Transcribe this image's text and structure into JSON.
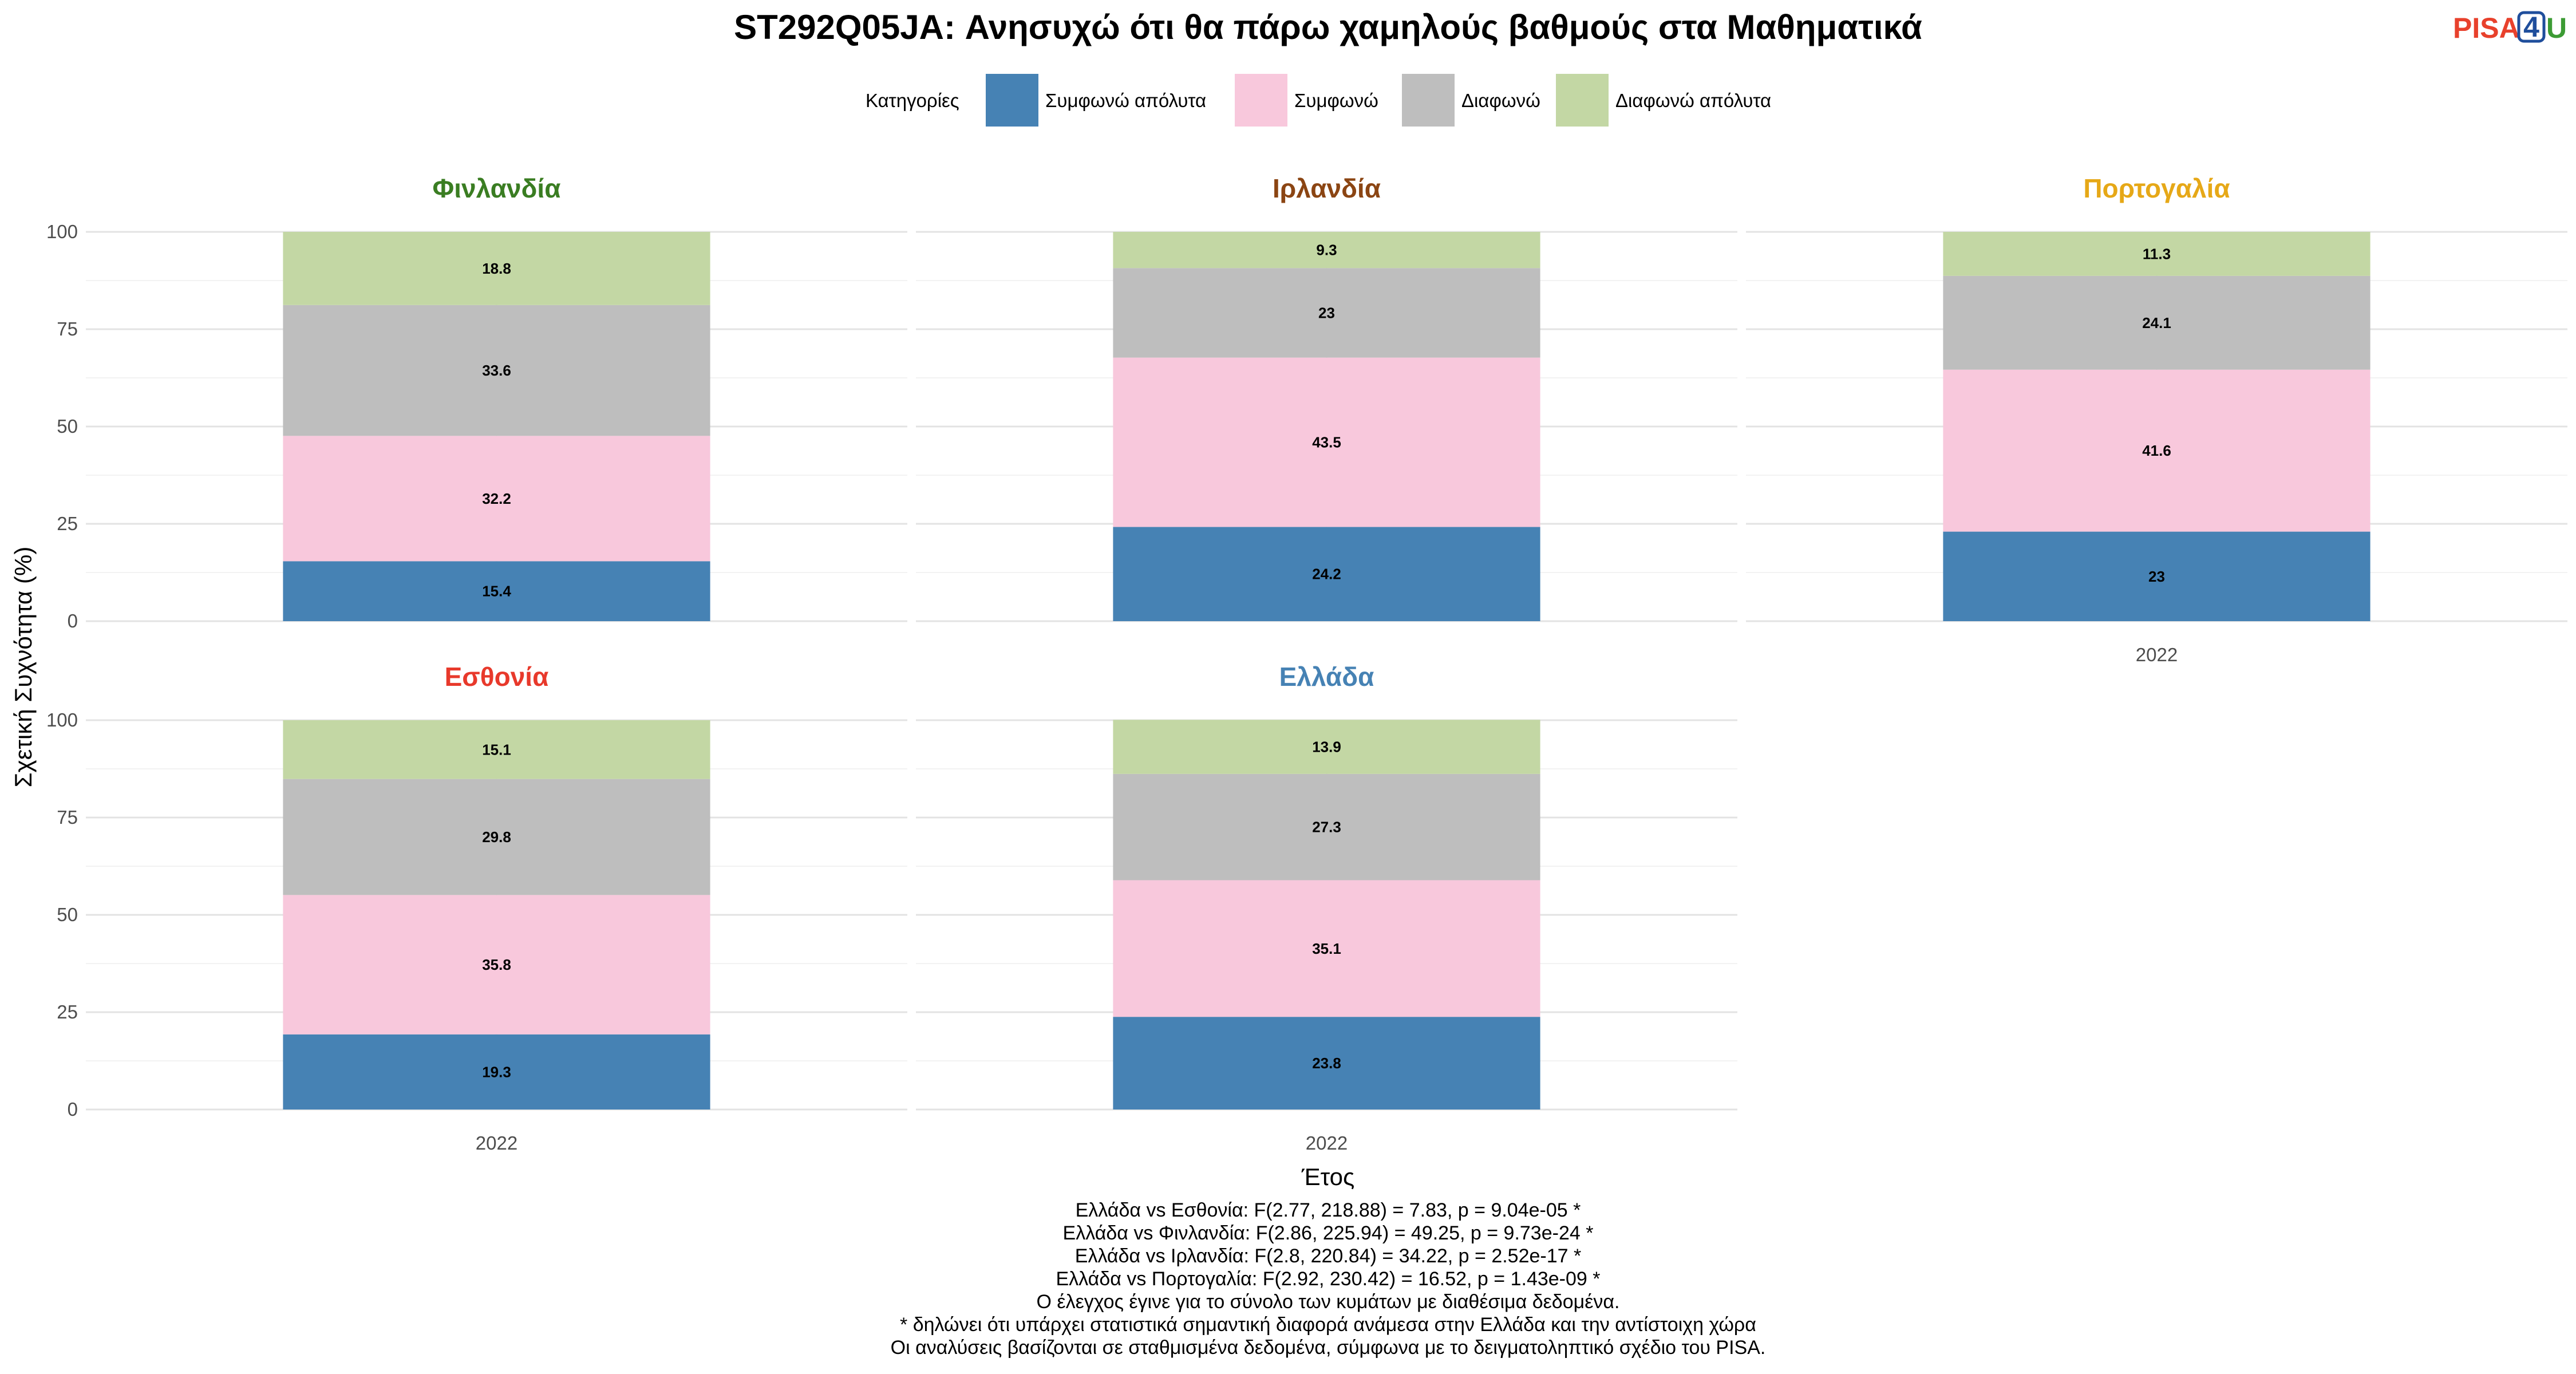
{
  "logo": {
    "text_a": "PISA",
    "text_b": "4",
    "text_c": "U",
    "color_a": "#e8412c",
    "color_b": "#1f4e9c",
    "color_c": "#3c9b34"
  },
  "chart_data": {
    "type": "bar",
    "stacked": true,
    "title": "ST292Q05JA: Ανησυχώ ότι θα πάρω χαμηλούς βαθμούς στα Μαθηματικά",
    "xlabel": "Έτος",
    "ylabel": "Σχετική Συχνότητα (%)",
    "ylim": [
      0,
      100
    ],
    "yticks": [
      0,
      25,
      50,
      75,
      100
    ],
    "grid": true,
    "legend": {
      "title": "Κατηγορίες",
      "placement": "top",
      "items": [
        {
          "label": "Συμφωνώ απόλυτα",
          "color": "#4682b4"
        },
        {
          "label": "Συμφωνώ",
          "color": "#f8c8dc"
        },
        {
          "label": "Διαφωνώ",
          "color": "#bebebe"
        },
        {
          "label": "Διαφωνώ απόλυτα",
          "color": "#c3d7a4"
        }
      ]
    },
    "panels": [
      {
        "name": "Φινλανδία",
        "color": "#3a7d22",
        "category": "2022",
        "show_x_tick": false,
        "values": [
          15.4,
          32.2,
          33.6,
          18.8
        ],
        "labels": [
          "15.4",
          "32.2",
          "33.6",
          "18.8"
        ]
      },
      {
        "name": "Ιρλανδία",
        "color": "#8b4513",
        "category": "2022",
        "show_x_tick": false,
        "values": [
          24.2,
          43.5,
          23.0,
          9.3
        ],
        "labels": [
          "24.2",
          "43.5",
          "23",
          "9.3"
        ]
      },
      {
        "name": "Πορτογαλία",
        "color": "#e6a817",
        "category": "2022",
        "show_x_tick": true,
        "values": [
          23.0,
          41.6,
          24.1,
          11.3
        ],
        "labels": [
          "23",
          "41.6",
          "24.1",
          "11.3"
        ]
      },
      {
        "name": "Εσθονία",
        "color": "#e8392b",
        "category": "2022",
        "show_x_tick": true,
        "values": [
          19.3,
          35.8,
          29.8,
          15.1
        ],
        "labels": [
          "19.3",
          "35.8",
          "29.8",
          "15.1"
        ]
      },
      {
        "name": "Ελλάδα",
        "color": "#4682b4",
        "category": "2022",
        "show_x_tick": true,
        "values": [
          23.8,
          35.1,
          27.3,
          13.9
        ],
        "labels": [
          "23.8",
          "35.1",
          "27.3",
          "13.9"
        ]
      }
    ],
    "notes": [
      "Ελλάδα vs Εσθονία: F(2.77, 218.88) = 7.83, p = 9.04e-05 *",
      "Ελλάδα vs Φινλανδία: F(2.86, 225.94) = 49.25, p = 9.73e-24 *",
      "Ελλάδα vs Ιρλανδία: F(2.8, 220.84) = 34.22, p = 2.52e-17 *",
      "Ελλάδα vs Πορτογαλία: F(2.92, 230.42) = 16.52, p = 1.43e-09 *",
      "Ο έλεγχος έγινε για το σύνολο των κυμάτων με διαθέσιμα δεδομένα.",
      "* δηλώνει ότι υπάρχει στατιστικά σημαντική διαφορά ανάμεσα στην Ελλάδα και την αντίστοιχη χώρα",
      "Οι αναλύσεις βασίζονται σε σταθμισμένα δεδομένα, σύμφωνα με το δειγματοληπτικό σχέδιο του PISA."
    ]
  }
}
